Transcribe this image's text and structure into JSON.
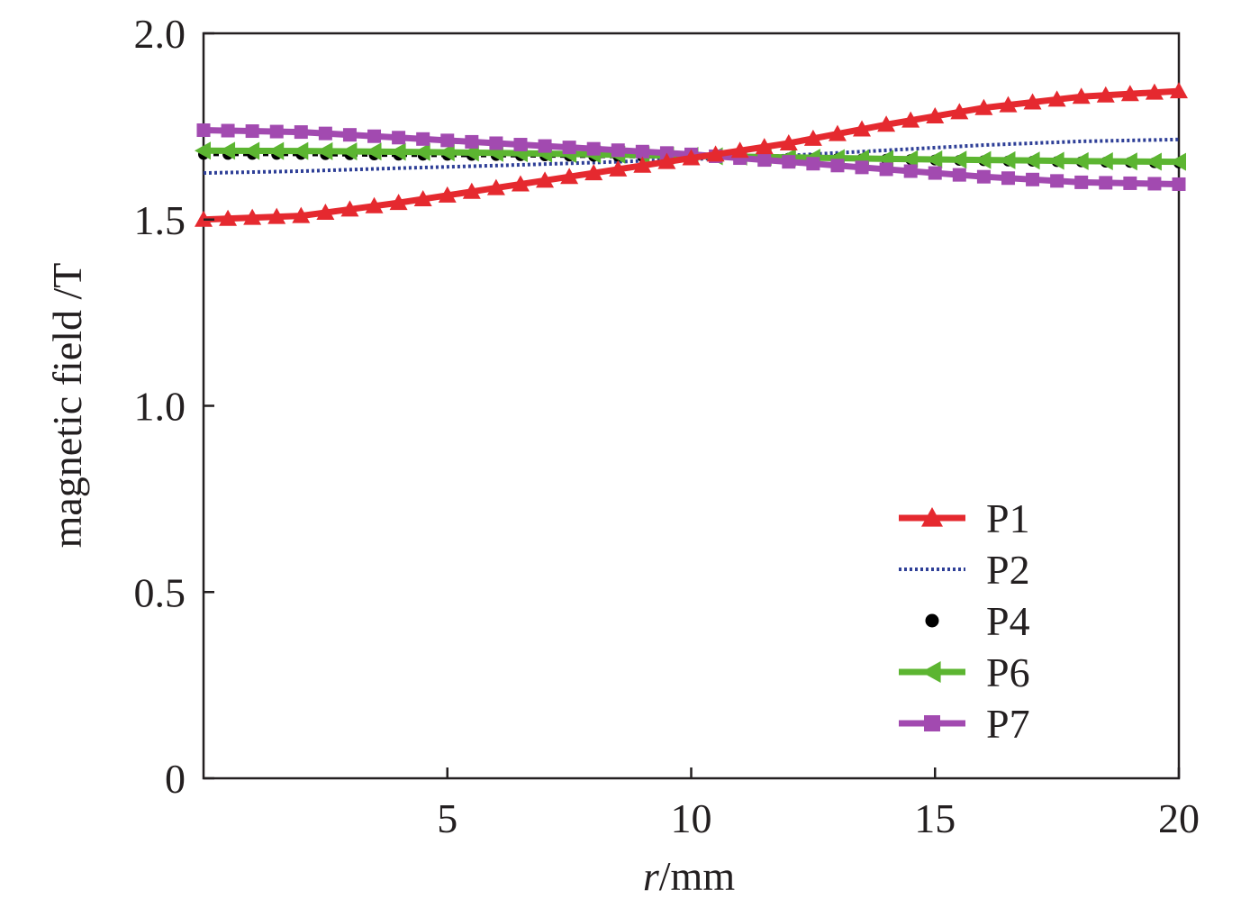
{
  "chart_data": {
    "type": "line",
    "xlabel_italic": "r",
    "xlabel_rest": "/mm",
    "ylabel": "magnetic field /T",
    "xlim": [
      0,
      20
    ],
    "ylim": [
      0,
      2.0
    ],
    "x_ticks": [
      5,
      10,
      15,
      20
    ],
    "x_tick_labels": [
      "5",
      "10",
      "15",
      "20"
    ],
    "y_ticks": [
      0,
      0.5,
      1.0,
      1.5,
      2.0
    ],
    "y_tick_labels": [
      "0",
      "0.5",
      "1.0",
      "1.5",
      "2.0"
    ],
    "grid": false,
    "legend_position": "bottom-right",
    "series": [
      {
        "name": "P1",
        "color": "#e5292f",
        "style": "solid",
        "marker": "triangle-up",
        "x": [
          0,
          2,
          4,
          6,
          8,
          10,
          12,
          14,
          16,
          18,
          20
        ],
        "values": [
          1.5,
          1.51,
          1.545,
          1.585,
          1.625,
          1.665,
          1.705,
          1.755,
          1.8,
          1.83,
          1.845
        ]
      },
      {
        "name": "P2",
        "color": "#2e3f97",
        "style": "dotted",
        "marker": "none",
        "x": [
          0,
          2,
          4,
          6,
          8,
          10,
          12,
          14,
          16,
          18,
          20
        ],
        "values": [
          1.625,
          1.63,
          1.638,
          1.645,
          1.653,
          1.662,
          1.672,
          1.686,
          1.7,
          1.71,
          1.715
        ]
      },
      {
        "name": "P4",
        "color": "#000000",
        "style": "dashed",
        "marker": "circle",
        "x": [
          0,
          2,
          4,
          6,
          8,
          10,
          12,
          14,
          16,
          18,
          20
        ],
        "values": [
          1.675,
          1.675,
          1.673,
          1.672,
          1.67,
          1.668,
          1.665,
          1.662,
          1.658,
          1.655,
          1.652
        ]
      },
      {
        "name": "P6",
        "color": "#5cb531",
        "style": "solid",
        "marker": "triangle-left",
        "x": [
          0,
          2,
          4,
          6,
          8,
          10,
          12,
          14,
          16,
          18,
          20
        ],
        "values": [
          1.685,
          1.684,
          1.682,
          1.679,
          1.675,
          1.671,
          1.667,
          1.663,
          1.66,
          1.657,
          1.655
        ]
      },
      {
        "name": "P7",
        "color": "#a24ab0",
        "style": "solid",
        "marker": "square",
        "x": [
          0,
          2,
          4,
          6,
          8,
          10,
          12,
          14,
          16,
          18,
          20
        ],
        "values": [
          1.74,
          1.735,
          1.72,
          1.705,
          1.69,
          1.675,
          1.655,
          1.635,
          1.615,
          1.6,
          1.595
        ]
      }
    ]
  }
}
